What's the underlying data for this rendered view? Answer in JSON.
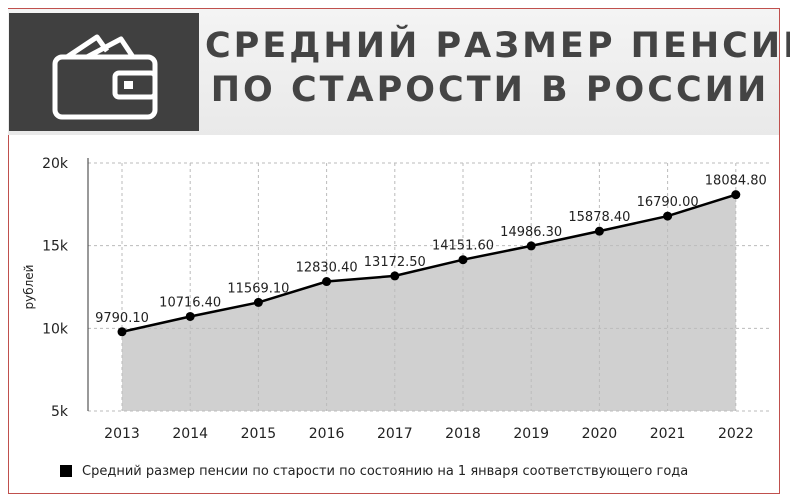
{
  "header": {
    "title_line1": "СРЕДНИЙ РАЗМЕР ПЕНСИИ",
    "title_line2": "ПО СТАРОСТИ В РОССИИ",
    "icon": "wallet-icon"
  },
  "chart_data": {
    "type": "area",
    "title": "СРЕДНИЙ РАЗМЕР ПЕНСИИ ПО СТАРОСТИ В РОССИИ",
    "categories": [
      "2013",
      "2014",
      "2015",
      "2016",
      "2017",
      "2018",
      "2019",
      "2020",
      "2021",
      "2022"
    ],
    "series": [
      {
        "name": "Средний размер пенсии по старости по состоянию на 1 января соответствующего года",
        "values": [
          9790.1,
          10716.4,
          11569.1,
          12830.4,
          13172.5,
          14151.6,
          14986.3,
          15878.4,
          16790.0,
          18084.8
        ],
        "labels": [
          "9790.10",
          "10716.40",
          "11569.10",
          "12830.40",
          "13172.50",
          "14151.60",
          "14986.30",
          "15878.40",
          "16790.00",
          "18084.80"
        ],
        "color": "#000000",
        "fill": "#d0d0d0"
      }
    ],
    "xlabel": "",
    "ylabel": "рублей",
    "ylim": [
      5000,
      20000
    ],
    "yticks": [
      5000,
      10000,
      15000,
      20000
    ],
    "ytick_labels": [
      "5k",
      "10k",
      "15k",
      "20k"
    ],
    "grid": true,
    "legend_position": "bottom"
  },
  "colors": {
    "frame": "#c0504d",
    "header_dark": "#404040",
    "title_text": "#444444",
    "grid": "#bbbbbb"
  }
}
